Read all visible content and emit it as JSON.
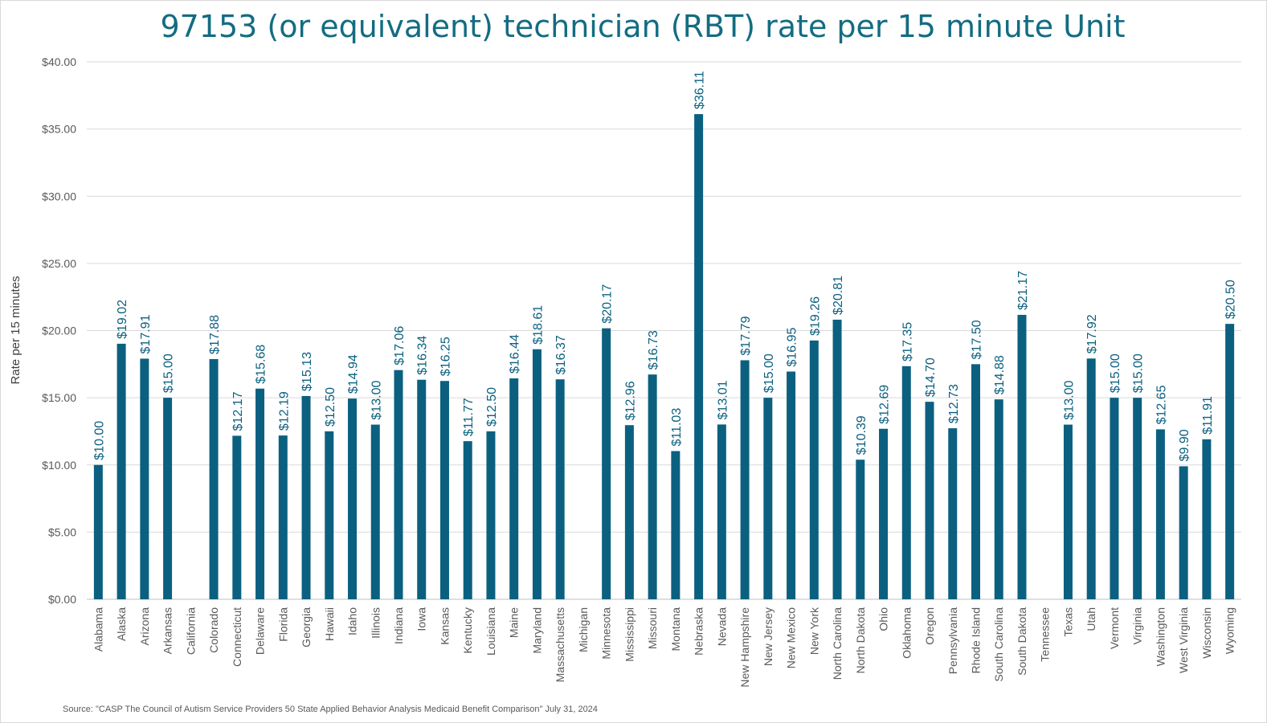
{
  "chart_data": {
    "type": "bar",
    "title": "97153 (or equivalent) technician (RBT) rate per 15 minute Unit",
    "ylabel": "Rate per 15 minutes",
    "xlabel": "",
    "ylim": [
      0,
      40
    ],
    "yticks": [
      0,
      5,
      10,
      15,
      20,
      25,
      30,
      35,
      40
    ],
    "ytick_labels": [
      "$0.00",
      "$5.00",
      "$10.00",
      "$15.00",
      "$20.00",
      "$25.00",
      "$30.00",
      "$35.00",
      "$40.00"
    ],
    "grid": true,
    "bar_color": "#0b6080",
    "categories": [
      "Alabama",
      "Alaska",
      "Arizona",
      "Arkansas",
      "California",
      "Colorado",
      "Connecticut",
      "Delaware",
      "Florida",
      "Georgia",
      "Hawaii",
      "Idaho",
      "Illinois",
      "Indiana",
      "Iowa",
      "Kansas",
      "Kentucky",
      "Louisiana",
      "Maine",
      "Maryland",
      "Massachusetts",
      "Michigan",
      "Minnesota",
      "Mississippi",
      "Missouri",
      "Montana",
      "Nebraska",
      "Nevada",
      "New Hampshire",
      "New Jersey",
      "New Mexico",
      "New York",
      "North Carolina",
      "North Dakota",
      "Ohio",
      "Oklahoma",
      "Oregon",
      "Pennsylvania",
      "Rhode Island",
      "South Carolina",
      "South Dakota",
      "Tennessee",
      "Texas",
      "Utah",
      "Vermont",
      "Virginia",
      "Washington",
      "West Virginia",
      "Wisconsin",
      "Wyoming"
    ],
    "values": [
      10.0,
      19.02,
      17.91,
      15.0,
      null,
      17.88,
      12.17,
      15.68,
      12.19,
      15.13,
      12.5,
      14.94,
      13.0,
      17.06,
      16.34,
      16.25,
      11.77,
      12.5,
      16.44,
      18.61,
      16.37,
      null,
      20.17,
      12.96,
      16.73,
      11.03,
      36.11,
      13.01,
      17.79,
      15.0,
      16.95,
      19.26,
      20.81,
      10.39,
      12.69,
      17.35,
      14.7,
      12.73,
      17.5,
      14.88,
      21.17,
      null,
      13.0,
      17.92,
      15.0,
      15.0,
      12.65,
      9.9,
      11.91,
      20.5
    ],
    "source": "Source: \"CASP The Council of Autism Service Providers 50 State Applied Behavior Analysis Medicaid Benefit Comparison\" July 31, 2024"
  }
}
